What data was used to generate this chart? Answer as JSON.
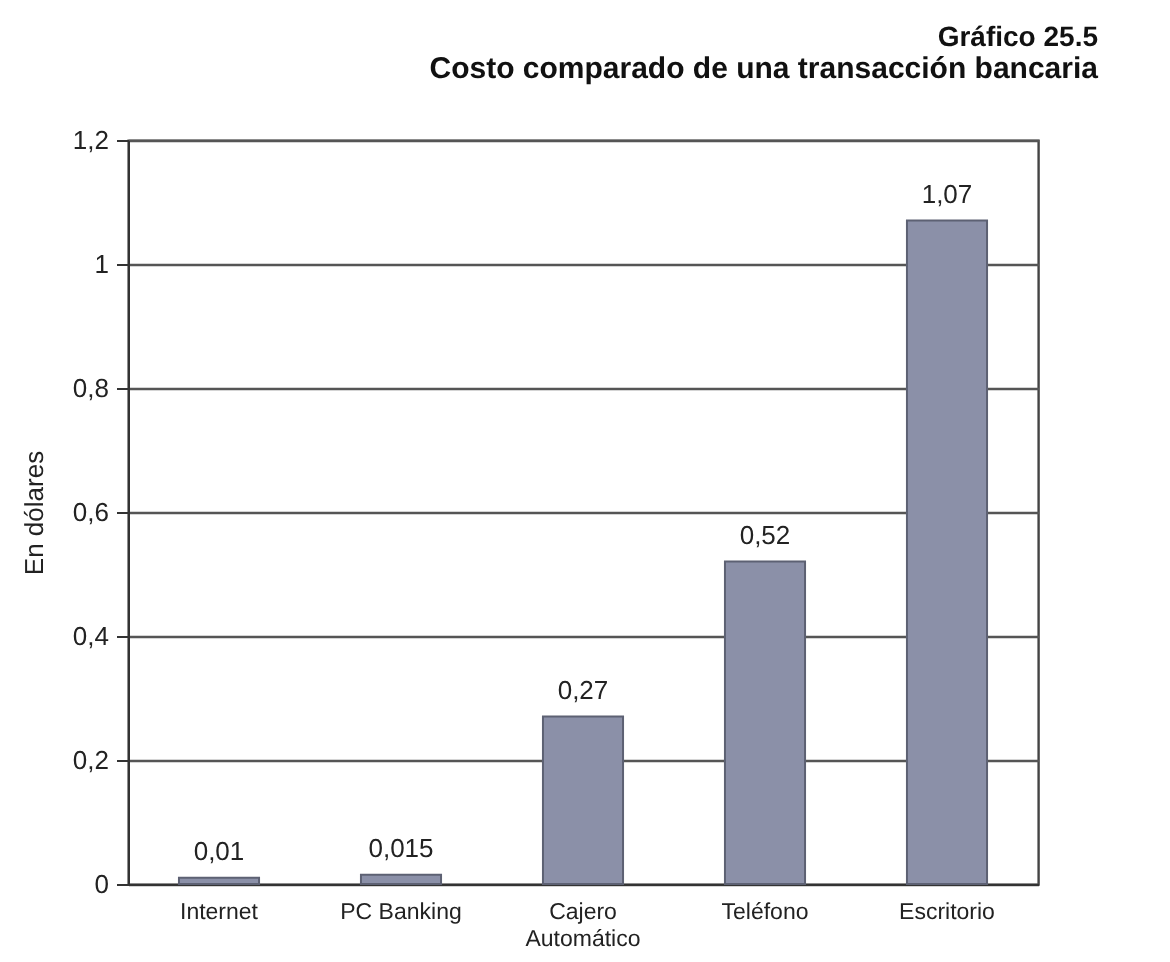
{
  "chart_data": {
    "type": "bar",
    "title": "Gráfico 25.5",
    "subtitle": "Costo comparado de una transacción bancaria",
    "ylabel": "En dólares",
    "categories": [
      "Internet",
      "PC Banking",
      "Cajero Automático",
      "Teléfono",
      "Escritorio"
    ],
    "values": [
      0.01,
      0.015,
      0.27,
      0.52,
      1.07
    ],
    "value_labels": [
      "0,01",
      "0,015",
      "0,27",
      "0,52",
      "1,07"
    ],
    "color": "#8b90a8",
    "ylim": [
      0,
      1.2
    ],
    "yticks": [
      0,
      {
        "value": 0.2,
        "label": "0,2"
      },
      {
        "value": 0.4,
        "label": "0,4"
      },
      {
        "value": 0.6,
        "label": "0,6"
      },
      {
        "value": 0.8,
        "label": "0,8"
      },
      1,
      {
        "value": 1.2,
        "label": "1,2"
      }
    ],
    "grid": "y"
  }
}
